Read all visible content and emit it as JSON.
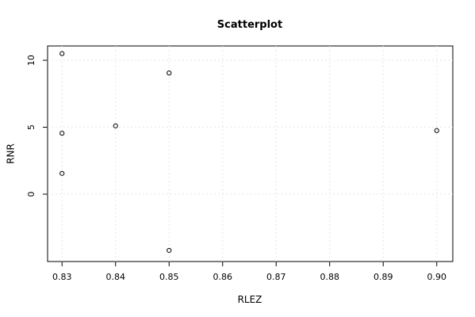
{
  "chart_data": {
    "type": "scatter",
    "title": "Scatterplot",
    "x_label": "RLEZ",
    "y_label": "RNR",
    "x": [
      0.83,
      0.83,
      0.83,
      0.84,
      0.85,
      0.85,
      0.9
    ],
    "values": [
      10.5,
      4.55,
      1.55,
      5.1,
      9.05,
      -4.2,
      4.75
    ],
    "color": "#000000",
    "xlim": [
      0.8273,
      0.903
    ],
    "ylim": [
      -5.03,
      11.07
    ],
    "xticks": [
      0.83,
      0.84,
      0.85,
      0.86,
      0.87,
      0.88,
      0.89,
      {
        "value": 0.9,
        "label": "0.90"
      }
    ],
    "yticks": [
      0,
      5,
      10
    ],
    "grid": true
  }
}
